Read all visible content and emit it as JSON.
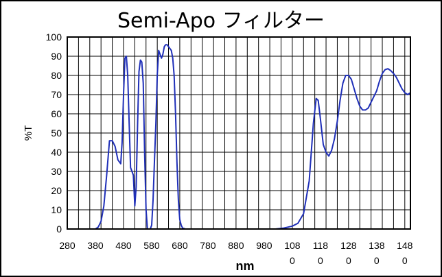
{
  "chart_data": {
    "type": "line",
    "title": "Semi-Apo フィルター",
    "xlabel": "nm",
    "ylabel": "%T",
    "xlim": [
      280,
      1500
    ],
    "ylim": [
      0,
      100
    ],
    "grid": true,
    "x_ticks": [
      280,
      320,
      360,
      400,
      440,
      480,
      520,
      560,
      600,
      640,
      680,
      720,
      760,
      800,
      840,
      880,
      920,
      960,
      1000,
      1040,
      1080,
      1120,
      1160,
      1200,
      1240,
      1280,
      1320,
      1360,
      1400,
      1440,
      1480
    ],
    "x_tick_labels": [
      {
        "x": 280,
        "lines": [
          "280"
        ]
      },
      {
        "x": 380,
        "lines": [
          "380"
        ]
      },
      {
        "x": 480,
        "lines": [
          "480"
        ]
      },
      {
        "x": 580,
        "lines": [
          "580"
        ]
      },
      {
        "x": 680,
        "lines": [
          "680"
        ]
      },
      {
        "x": 780,
        "lines": [
          "780"
        ]
      },
      {
        "x": 880,
        "lines": [
          "880"
        ]
      },
      {
        "x": 980,
        "lines": [
          "980"
        ]
      },
      {
        "x": 1080,
        "lines": [
          "108",
          "0"
        ]
      },
      {
        "x": 1180,
        "lines": [
          "118",
          "0"
        ]
      },
      {
        "x": 1280,
        "lines": [
          "128",
          "0"
        ]
      },
      {
        "x": 1380,
        "lines": [
          "138",
          "0"
        ]
      },
      {
        "x": 1480,
        "lines": [
          "148",
          "0"
        ]
      }
    ],
    "y_ticks": [
      0,
      10,
      20,
      30,
      40,
      50,
      60,
      70,
      80,
      90,
      100
    ],
    "line_color": "#1f2fb8",
    "series": [
      {
        "x": [
          280,
          380,
          390,
          400,
          410,
          420,
          430,
          440,
          450,
          460,
          470,
          475,
          480,
          485,
          490,
          495,
          500,
          505,
          510,
          515,
          520,
          525,
          530,
          535,
          540,
          545,
          550,
          555,
          560,
          565,
          570,
          575,
          580,
          585,
          590,
          595,
          600,
          605,
          610,
          615,
          620,
          625,
          630,
          635,
          640,
          645,
          650,
          655,
          660,
          665,
          670,
          675,
          680,
          685,
          690,
          700,
          720,
          1020,
          1050,
          1080,
          1100,
          1120,
          1140,
          1155,
          1165,
          1172,
          1178,
          1184,
          1190,
          1200,
          1210,
          1220,
          1230,
          1240,
          1250,
          1260,
          1270,
          1280,
          1290,
          1300,
          1310,
          1320,
          1330,
          1340,
          1350,
          1360,
          1370,
          1380,
          1390,
          1400,
          1410,
          1420,
          1430,
          1440,
          1450,
          1460,
          1470,
          1480,
          1490,
          1500
        ],
        "y": [
          0,
          0,
          1,
          4,
          12,
          28,
          46,
          46,
          43,
          36,
          34,
          45,
          70,
          89,
          90,
          80,
          55,
          32,
          30,
          28,
          12,
          22,
          55,
          82,
          88,
          87,
          76,
          40,
          10,
          0,
          0,
          0,
          2,
          15,
          35,
          55,
          80,
          93,
          91,
          89,
          91,
          95,
          96,
          96,
          95,
          94,
          93,
          89,
          80,
          60,
          35,
          15,
          5,
          2,
          0.5,
          0,
          0,
          0,
          0.5,
          1.5,
          3,
          8,
          25,
          55,
          68,
          67,
          60,
          52,
          44,
          40,
          38,
          41,
          47,
          56,
          67,
          76,
          80,
          80,
          78,
          73,
          68,
          64,
          62,
          62,
          63,
          66,
          69,
          72,
          77,
          81,
          83,
          83.5,
          82.5,
          81,
          79,
          76,
          73,
          71,
          70,
          71
        ]
      }
    ]
  }
}
